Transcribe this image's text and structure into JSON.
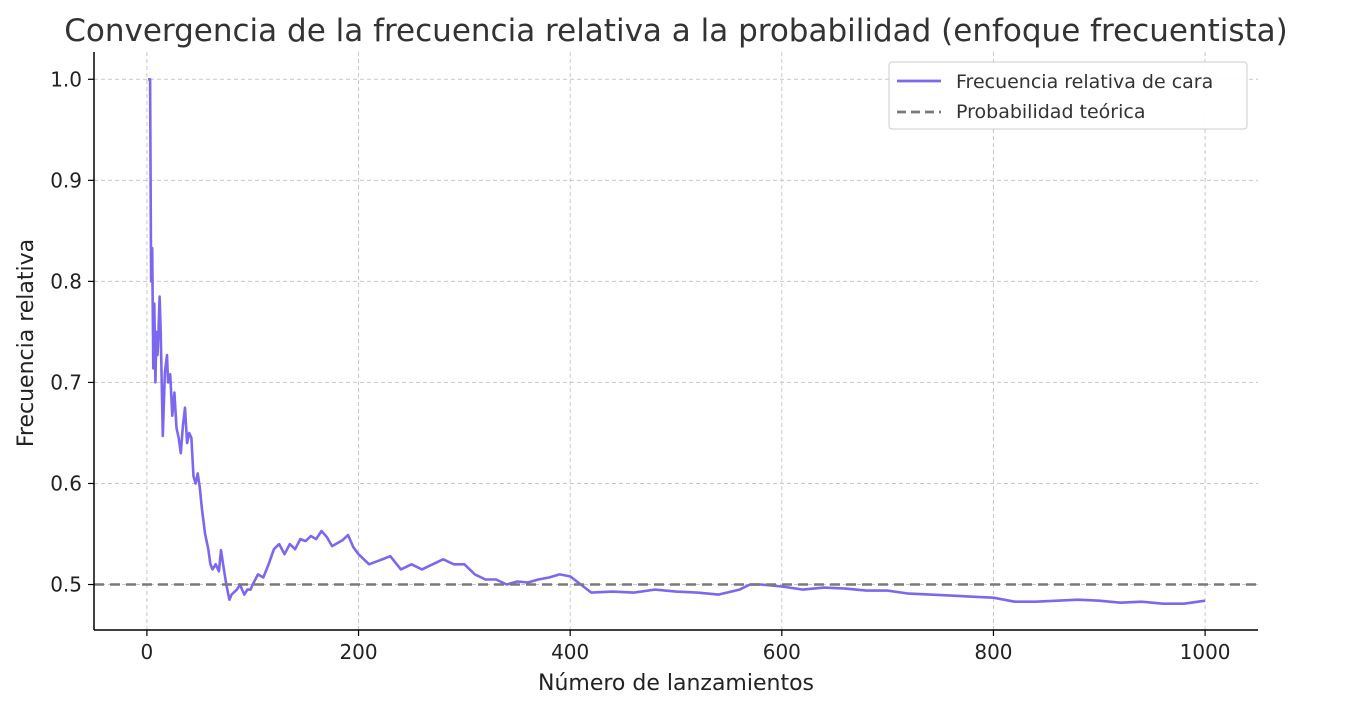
{
  "chart_data": {
    "type": "line",
    "title": "Convergencia de la frecuencia relativa a la probabilidad (enfoque frecuentista)",
    "xlabel": "Número de lanzamientos",
    "ylabel": "Frecuencia relativa",
    "xlim": [
      -50,
      1050
    ],
    "ylim": [
      0.455,
      1.027
    ],
    "xticks": [
      0,
      200,
      400,
      600,
      800,
      1000
    ],
    "xtick_labels": [
      "0",
      "200",
      "400",
      "600",
      "800",
      "1000"
    ],
    "yticks": [
      0.5,
      0.6,
      0.7,
      0.8,
      0.9,
      1.0
    ],
    "ytick_labels": [
      "0.5",
      "0.6",
      "0.7",
      "0.8",
      "0.9",
      "1.0"
    ],
    "grid": true,
    "legend": "top-right",
    "series": [
      {
        "name": "Frecuencia relativa de cara",
        "color": "#7b68ee",
        "style": "solid",
        "x": [
          1,
          2,
          3,
          4,
          5,
          6,
          7,
          8,
          9,
          10,
          11,
          12,
          13,
          15,
          17,
          19,
          20,
          22,
          24,
          26,
          28,
          30,
          32,
          34,
          36,
          38,
          40,
          42,
          44,
          46,
          48,
          50,
          52,
          55,
          58,
          60,
          62,
          65,
          68,
          70,
          72,
          75,
          78,
          80,
          82,
          85,
          88,
          90,
          92,
          95,
          98,
          100,
          105,
          110,
          115,
          120,
          125,
          130,
          135,
          140,
          145,
          150,
          155,
          160,
          165,
          170,
          175,
          180,
          185,
          190,
          195,
          200,
          210,
          220,
          230,
          240,
          250,
          260,
          270,
          280,
          290,
          300,
          310,
          320,
          330,
          340,
          350,
          360,
          370,
          380,
          390,
          400,
          410,
          420,
          440,
          460,
          480,
          500,
          520,
          540,
          560,
          570,
          580,
          600,
          620,
          640,
          660,
          680,
          700,
          720,
          740,
          760,
          780,
          800,
          820,
          840,
          860,
          880,
          900,
          920,
          940,
          960,
          980,
          1000
        ],
        "y": [
          1.0,
          1.0,
          1.0,
          0.8,
          0.833,
          0.714,
          0.778,
          0.7,
          0.75,
          0.727,
          0.75,
          0.785,
          0.75,
          0.647,
          0.71,
          0.727,
          0.7,
          0.708,
          0.667,
          0.69,
          0.655,
          0.645,
          0.63,
          0.657,
          0.675,
          0.64,
          0.65,
          0.645,
          0.607,
          0.6,
          0.61,
          0.596,
          0.575,
          0.55,
          0.535,
          0.52,
          0.515,
          0.52,
          0.513,
          0.534,
          0.52,
          0.5,
          0.485,
          0.49,
          0.492,
          0.495,
          0.5,
          0.495,
          0.49,
          0.495,
          0.495,
          0.5,
          0.51,
          0.507,
          0.52,
          0.535,
          0.54,
          0.53,
          0.54,
          0.535,
          0.545,
          0.543,
          0.548,
          0.545,
          0.553,
          0.547,
          0.538,
          0.541,
          0.544,
          0.549,
          0.537,
          0.53,
          0.52,
          0.524,
          0.528,
          0.515,
          0.52,
          0.515,
          0.52,
          0.525,
          0.52,
          0.52,
          0.51,
          0.505,
          0.505,
          0.5,
          0.503,
          0.502,
          0.505,
          0.507,
          0.51,
          0.508,
          0.5,
          0.492,
          0.493,
          0.492,
          0.495,
          0.493,
          0.492,
          0.49,
          0.495,
          0.5,
          0.5,
          0.498,
          0.495,
          0.497,
          0.496,
          0.494,
          0.494,
          0.491,
          0.49,
          0.489,
          0.488,
          0.487,
          0.483,
          0.483,
          0.484,
          0.485,
          0.484,
          0.482,
          0.483,
          0.481,
          0.481,
          0.484
        ]
      },
      {
        "name": "Probabilidad teórica",
        "color": "#7a7a7a",
        "style": "dashed",
        "x": [
          -50,
          1050
        ],
        "y": [
          0.5,
          0.5
        ]
      }
    ]
  }
}
